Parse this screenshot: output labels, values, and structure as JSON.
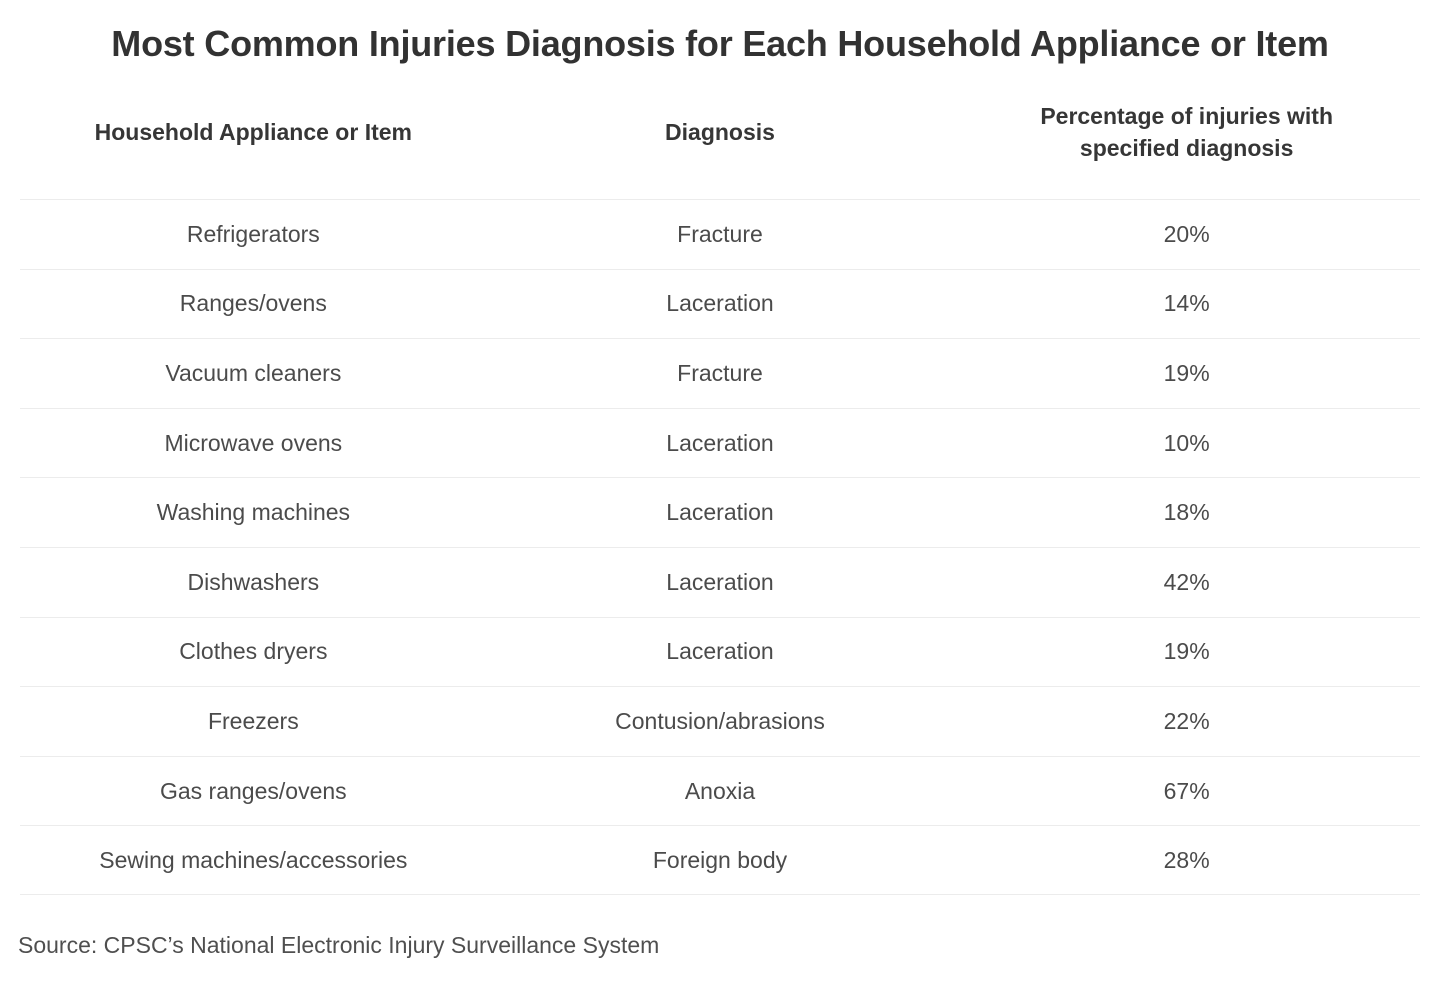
{
  "title": "Most Common Injuries Diagnosis for Each Household Appliance or Item",
  "header": {
    "col1": "Household Appliance or Item",
    "col2": "Diagnosis",
    "col3_line1": "Percentage of injuries with",
    "col3_line2": "specified diagnosis"
  },
  "rows": [
    {
      "appliance": "Refrigerators",
      "diagnosis": "Fracture",
      "percentage": "20%"
    },
    {
      "appliance": "Ranges/ovens",
      "diagnosis": "Laceration",
      "percentage": "14%"
    },
    {
      "appliance": "Vacuum cleaners",
      "diagnosis": "Fracture",
      "percentage": "19%"
    },
    {
      "appliance": "Microwave ovens",
      "diagnosis": "Laceration",
      "percentage": "10%"
    },
    {
      "appliance": "Washing machines",
      "diagnosis": "Laceration",
      "percentage": "18%"
    },
    {
      "appliance": "Dishwashers",
      "diagnosis": "Laceration",
      "percentage": "42%"
    },
    {
      "appliance": "Clothes dryers",
      "diagnosis": "Laceration",
      "percentage": "19%"
    },
    {
      "appliance": "Freezers",
      "diagnosis": "Contusion/abrasions",
      "percentage": "22%"
    },
    {
      "appliance": "Gas ranges/ovens",
      "diagnosis": "Anoxia",
      "percentage": "67%"
    },
    {
      "appliance": "Sewing machines/accessories",
      "diagnosis": "Foreign body",
      "percentage": "28%"
    }
  ],
  "source": "Source: CPSC’s National Electronic Injury Surveillance System",
  "colors": {
    "background": "#ffffff",
    "title_text": "#323232",
    "header_text": "#363636",
    "body_text": "#4b4b4b",
    "divider": "#ececec",
    "source_text": "#4f4f4f"
  },
  "chart_data": {
    "type": "table",
    "title": "Most Common Injuries Diagnosis for Each Household Appliance or Item",
    "columns": [
      "Household Appliance or Item",
      "Diagnosis",
      "Percentage of injuries with specified diagnosis"
    ],
    "rows": [
      [
        "Refrigerators",
        "Fracture",
        "20%"
      ],
      [
        "Ranges/ovens",
        "Laceration",
        "14%"
      ],
      [
        "Vacuum cleaners",
        "Fracture",
        "19%"
      ],
      [
        "Microwave ovens",
        "Laceration",
        "10%"
      ],
      [
        "Washing machines",
        "Laceration",
        "18%"
      ],
      [
        "Dishwashers",
        "Laceration",
        "42%"
      ],
      [
        "Clothes dryers",
        "Laceration",
        "19%"
      ],
      [
        "Freezers",
        "Contusion/abrasions",
        "22%"
      ],
      [
        "Gas ranges/ovens",
        "Anoxia",
        "67%"
      ],
      [
        "Sewing machines/accessories",
        "Foreign body",
        "28%"
      ]
    ],
    "percent_values": [
      20,
      14,
      19,
      10,
      18,
      42,
      19,
      22,
      67,
      28
    ],
    "source": "Source: CPSC’s National Electronic Injury Surveillance System",
    "layout": {
      "grid": "horizontal-dividers-only",
      "column_alignment": "center"
    }
  }
}
